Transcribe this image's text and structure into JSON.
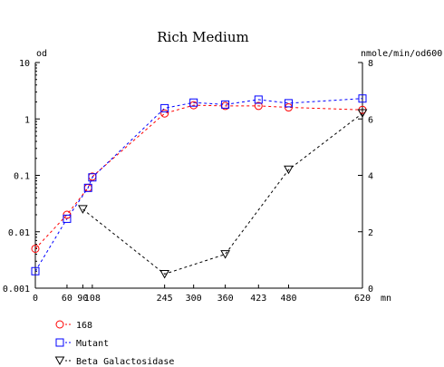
{
  "chart_data": {
    "type": "line",
    "title": "Rich Medium",
    "xlabel": "mn",
    "ylabel_left": "od",
    "ylabel_right": "nmole/min/od600",
    "x_ticks": [
      0,
      60,
      90,
      108,
      245,
      300,
      360,
      423,
      480,
      620
    ],
    "x_tick_labels": [
      "0",
      "60",
      "90",
      "108",
      "245",
      "300",
      "360",
      "423",
      "480",
      "620"
    ],
    "xlim": [
      0,
      620
    ],
    "y_left": {
      "scale": "log",
      "lim": [
        0.001,
        10
      ],
      "tick_labels": [
        "0.001",
        "0.01",
        "0.1",
        "1",
        "10"
      ]
    },
    "y_right": {
      "scale": "linear",
      "lim": [
        0,
        8
      ],
      "tick_labels": [
        "0",
        "2",
        "4",
        "6",
        "8"
      ]
    },
    "series": [
      {
        "name": "168",
        "color": "#ff0000",
        "marker": "circle",
        "axis": "left",
        "points": [
          [
            0,
            0.005
          ],
          [
            60,
            0.02
          ],
          [
            100,
            0.06
          ],
          [
            108,
            0.095
          ],
          [
            245,
            1.25
          ],
          [
            300,
            1.75
          ],
          [
            360,
            1.7
          ],
          [
            423,
            1.7
          ],
          [
            480,
            1.6
          ],
          [
            620,
            1.45
          ]
        ]
      },
      {
        "name": "Mutant",
        "color": "#0000ff",
        "marker": "square",
        "axis": "left",
        "points": [
          [
            0,
            0.002
          ],
          [
            60,
            0.017
          ],
          [
            100,
            0.06
          ],
          [
            108,
            0.092
          ],
          [
            245,
            1.55
          ],
          [
            300,
            1.95
          ],
          [
            360,
            1.8
          ],
          [
            423,
            2.2
          ],
          [
            480,
            1.9
          ],
          [
            620,
            2.3
          ]
        ]
      },
      {
        "name": "Beta Galactosidase",
        "color": "#000000",
        "marker": "triangle-down",
        "axis": "right",
        "points": [
          [
            90,
            2.8
          ],
          [
            245,
            0.5
          ],
          [
            360,
            1.2
          ],
          [
            480,
            4.2
          ],
          [
            620,
            6.2
          ]
        ]
      }
    ],
    "legend_position": "bottom-left",
    "grid": false
  }
}
